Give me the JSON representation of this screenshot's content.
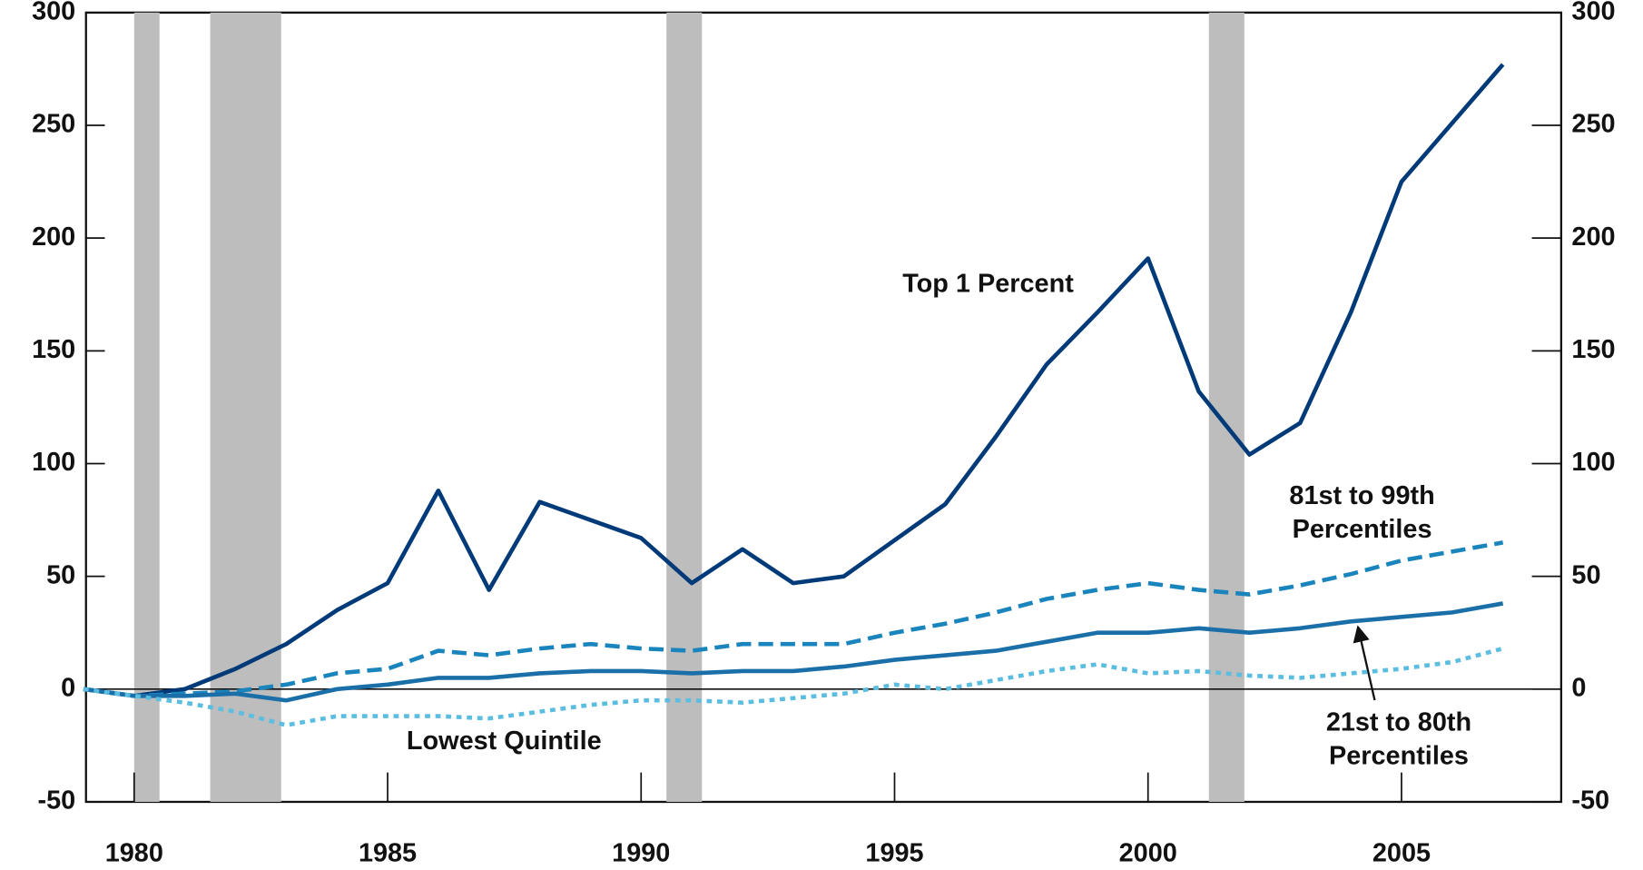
{
  "chart_data": {
    "type": "line",
    "x": [
      1979,
      1980,
      1981,
      1982,
      1983,
      1984,
      1985,
      1986,
      1987,
      1988,
      1989,
      1990,
      1991,
      1992,
      1993,
      1994,
      1995,
      1996,
      1997,
      1998,
      1999,
      2000,
      2001,
      2002,
      2003,
      2004,
      2005,
      2006,
      2007
    ],
    "series": [
      {
        "name": "Top 1 Percent",
        "color": "#003a78",
        "dash": "solid",
        "values": [
          0,
          -3,
          0,
          9,
          20,
          35,
          47,
          88,
          44,
          83,
          75,
          67,
          47,
          62,
          47,
          50,
          66,
          82,
          112,
          144,
          167,
          191,
          132,
          104,
          118,
          167,
          225,
          251,
          277
        ]
      },
      {
        "name": "81st to 99th Percentiles",
        "color": "#1a84bd",
        "dash": "dashed",
        "values": [
          0,
          -3,
          -2,
          -1,
          2,
          7,
          9,
          17,
          15,
          18,
          20,
          18,
          17,
          20,
          20,
          20,
          25,
          29,
          34,
          40,
          44,
          47,
          44,
          42,
          46,
          51,
          57,
          61,
          65
        ]
      },
      {
        "name": "21st to 80th Percentiles",
        "color": "#1a6fa8",
        "dash": "solid",
        "values": [
          0,
          -3,
          -3,
          -2,
          -5,
          0,
          2,
          5,
          5,
          7,
          8,
          8,
          7,
          8,
          8,
          10,
          13,
          15,
          17,
          21,
          25,
          25,
          27,
          25,
          27,
          30,
          32,
          34,
          38
        ]
      },
      {
        "name": "Lowest Quintile",
        "color": "#5bbde0",
        "dash": "dotted",
        "values": [
          0,
          -3,
          -6,
          -10,
          -16,
          -12,
          -12,
          -12,
          -13,
          -10,
          -7,
          -5,
          -5,
          -6,
          -4,
          -2,
          2,
          0,
          4,
          8,
          11,
          7,
          8,
          6,
          5,
          7,
          9,
          12,
          18
        ]
      }
    ],
    "shaded_periods": [
      [
        1980.0,
        1980.5
      ],
      [
        1981.5,
        1982.9
      ],
      [
        1990.5,
        1991.2
      ],
      [
        2001.2,
        2001.9
      ]
    ],
    "shade_color": "#bdbdbd",
    "xlim": [
      1979.05,
      2008.15
    ],
    "xticks": [
      1980,
      1985,
      1990,
      1995,
      2000,
      2005
    ],
    "ylim": [
      -50,
      300
    ],
    "yticks": [
      -50,
      0,
      50,
      100,
      150,
      200,
      250,
      300
    ],
    "y2lim": [
      -50,
      300
    ],
    "y2ticks": [
      -50,
      0,
      50,
      100,
      150,
      200,
      250,
      300
    ]
  }
}
